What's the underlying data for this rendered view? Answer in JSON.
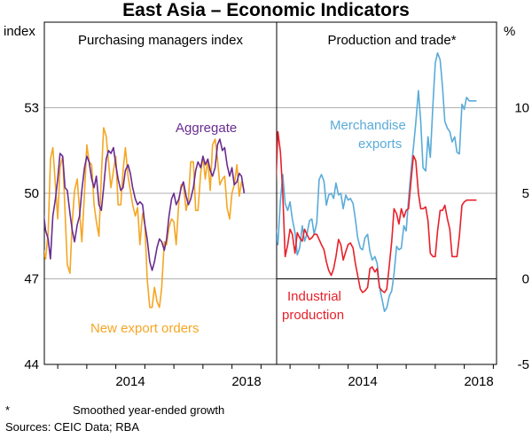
{
  "chart_data": {
    "title": "East Asia – Economic Indicators",
    "notes": {
      "asterisk": "*",
      "footnote": "Smoothed year-ended growth",
      "sources": "Sources: CEIC Data; RBA"
    },
    "x_tick_labels": [
      "2014",
      "2018",
      "2014",
      "2018"
    ],
    "panels": [
      {
        "type": "line",
        "title": "Purchasing managers index",
        "ylabel": "index",
        "ylim": [
          44,
          56
        ],
        "yticks": [
          44,
          47,
          50,
          53
        ],
        "xlim": [
          2011.0,
          2019.0
        ],
        "series": [
          {
            "name": "Aggregate",
            "label": "Aggregate",
            "color": "#6a2c91",
            "x": [
              2011.0,
              2011.08,
              2011.17,
              2011.25,
              2011.33,
              2011.42,
              2011.5,
              2011.58,
              2011.67,
              2011.75,
              2011.83,
              2011.92,
              2012.0,
              2012.08,
              2012.17,
              2012.25,
              2012.33,
              2012.42,
              2012.5,
              2012.58,
              2012.67,
              2012.75,
              2012.83,
              2012.92,
              2013.0,
              2013.08,
              2013.17,
              2013.25,
              2013.33,
              2013.42,
              2013.5,
              2013.58,
              2013.67,
              2013.75,
              2013.83,
              2013.92,
              2014.0,
              2014.08,
              2014.17,
              2014.25,
              2014.33,
              2014.42,
              2014.5,
              2014.58,
              2014.67,
              2014.75,
              2014.83,
              2014.92,
              2015.0,
              2015.08,
              2015.17,
              2015.25,
              2015.33,
              2015.42,
              2015.5,
              2015.58,
              2015.67,
              2015.75,
              2015.83,
              2015.92,
              2016.0,
              2016.08,
              2016.17,
              2016.25,
              2016.33,
              2016.42,
              2016.5,
              2016.58,
              2016.67,
              2016.75,
              2016.83,
              2016.92,
              2017.0,
              2017.08,
              2017.17,
              2017.25,
              2017.33,
              2017.42,
              2017.5,
              2017.58,
              2017.67,
              2017.75,
              2017.83,
              2017.92,
              2018.0,
              2018.08,
              2018.17,
              2018.25,
              2018.33,
              2018.42
            ],
            "y": [
              51.9,
              51.2,
              50.6,
              51.7,
              50.1,
              49.8,
              49.4,
              48.7,
              48.4,
              47.7,
              49.2,
              49.8,
              50.5,
              51.4,
              51.3,
              50.2,
              50.1,
              49.3,
              48.7,
              48.3,
              48.9,
              49.2,
              50.1,
              50.9,
              51.3,
              51.1,
              50.5,
              50.2,
              50.6,
              49.6,
              49.4,
              50.2,
              51.2,
              51.5,
              51.4,
              51.6,
              51.0,
              50.5,
              50.1,
              50.2,
              50.8,
              51.0,
              50.7,
              50.2,
              49.8,
              49.6,
              49.7,
              49.6,
              48.9,
              48.4,
              47.6,
              47.3,
              47.6,
              48.1,
              48.4,
              48.3,
              48.0,
              48.4,
              49.2,
              49.8,
              50.0,
              49.6,
              49.8,
              50.2,
              50.4,
              49.9,
              49.6,
              49.8,
              50.2,
              50.8,
              51.1,
              50.9,
              51.3,
              51.0,
              51.2,
              50.8,
              50.6,
              50.9,
              51.7,
              51.9,
              51.5,
              51.6,
              51.0,
              50.6,
              50.9,
              50.3,
              50.4,
              50.7,
              50.6,
              50.0
            ]
          },
          {
            "name": "New export orders",
            "label": "New export orders",
            "color": "#f5a623",
            "x": [
              2011.0,
              2011.08,
              2011.17,
              2011.25,
              2011.33,
              2011.42,
              2011.5,
              2011.58,
              2011.67,
              2011.75,
              2011.83,
              2011.92,
              2012.0,
              2012.08,
              2012.17,
              2012.25,
              2012.33,
              2012.42,
              2012.5,
              2012.58,
              2012.67,
              2012.75,
              2012.83,
              2012.92,
              2013.0,
              2013.08,
              2013.17,
              2013.25,
              2013.33,
              2013.42,
              2013.5,
              2013.58,
              2013.67,
              2013.75,
              2013.83,
              2013.92,
              2014.0,
              2014.08,
              2014.17,
              2014.25,
              2014.33,
              2014.42,
              2014.5,
              2014.58,
              2014.67,
              2014.75,
              2014.83,
              2014.92,
              2015.0,
              2015.08,
              2015.17,
              2015.25,
              2015.33,
              2015.42,
              2015.5,
              2015.58,
              2015.67,
              2015.75,
              2015.83,
              2015.92,
              2016.0,
              2016.08,
              2016.17,
              2016.25,
              2016.33,
              2016.42,
              2016.5,
              2016.58,
              2016.67,
              2016.75,
              2016.83,
              2016.92,
              2017.0,
              2017.08,
              2017.17,
              2017.25,
              2017.33,
              2017.42,
              2017.5,
              2017.58,
              2017.67,
              2017.75,
              2017.83,
              2017.92,
              2018.0,
              2018.08,
              2018.17,
              2018.25,
              2018.33,
              2018.42
            ],
            "y": [
              48.3,
              50.6,
              51.8,
              50.4,
              49.3,
              47.9,
              48.1,
              47.7,
              48.6,
              51.2,
              51.6,
              50.3,
              49.1,
              50.9,
              51.3,
              49.4,
              47.5,
              47.2,
              49.0,
              50.1,
              50.5,
              49.4,
              48.3,
              50.0,
              51.7,
              51.1,
              51.0,
              49.6,
              49.0,
              48.5,
              50.6,
              52.3,
              52.0,
              51.1,
              50.2,
              50.8,
              51.3,
              49.6,
              49.6,
              50.8,
              51.6,
              50.6,
              50.1,
              49.6,
              49.2,
              49.5,
              48.2,
              49.3,
              48.9,
              47.0,
              46.0,
              46.0,
              46.7,
              46.2,
              46.0,
              46.7,
              48.3,
              48.2,
              48.8,
              49.1,
              49.0,
              48.2,
              49.7,
              50.3,
              50.3,
              49.4,
              49.8,
              51.1,
              51.1,
              49.4,
              49.4,
              50.7,
              51.3,
              50.5,
              51.2,
              50.1,
              51.7,
              51.9,
              51.2,
              50.3,
              50.5,
              50.6,
              49.5,
              49.1,
              50.0,
              50.3,
              51.0,
              49.9,
              50.4,
              50.1
            ]
          }
        ]
      },
      {
        "type": "line",
        "title": "Production and trade*",
        "ylabel": "%",
        "ylim": [
          -5,
          15
        ],
        "yticks": [
          -5,
          0,
          5,
          10
        ],
        "xlim": [
          2011.0,
          2019.0
        ],
        "series": [
          {
            "name": "Merchandise exports",
            "label_line1": "Merchandise",
            "label_line2": "exports",
            "color": "#5aabd9",
            "x": [
              2011.0,
              2011.08,
              2011.17,
              2011.25,
              2011.33,
              2011.42,
              2011.5,
              2011.58,
              2011.67,
              2011.75,
              2011.83,
              2011.92,
              2012.0,
              2012.08,
              2012.17,
              2012.25,
              2012.33,
              2012.42,
              2012.5,
              2012.58,
              2012.67,
              2012.75,
              2012.83,
              2012.92,
              2013.0,
              2013.08,
              2013.17,
              2013.25,
              2013.33,
              2013.42,
              2013.5,
              2013.58,
              2013.67,
              2013.75,
              2013.83,
              2013.92,
              2014.0,
              2014.08,
              2014.17,
              2014.25,
              2014.33,
              2014.42,
              2014.5,
              2014.58,
              2014.67,
              2014.75,
              2014.83,
              2014.92,
              2015.0,
              2015.08,
              2015.17,
              2015.25,
              2015.33,
              2015.42,
              2015.5,
              2015.58,
              2015.67,
              2015.75,
              2015.83,
              2015.92,
              2016.0,
              2016.08,
              2016.17,
              2016.25,
              2016.33,
              2016.42,
              2016.5,
              2016.58,
              2016.67,
              2016.75,
              2016.83,
              2016.92,
              2017.0,
              2017.08,
              2017.17,
              2017.25,
              2017.33,
              2017.42,
              2017.5,
              2017.58,
              2017.67,
              2017.75,
              2017.83,
              2017.92,
              2018.0,
              2018.08,
              2018.17,
              2018.25,
              2018.33,
              2018.42
            ],
            "y": [
              1.5,
              2.0,
              1.3,
              2.3,
              1.8,
              2.6,
              3.2,
              2.0,
              4.6,
              6.1,
              4.4,
              4.0,
              4.5,
              3.5,
              2.7,
              1.4,
              1.8,
              3.1,
              2.2,
              2.6,
              3.4,
              3.5,
              2.6,
              3.3,
              5.8,
              6.1,
              5.7,
              4.3,
              4.9,
              5.0,
              4.7,
              5.6,
              4.9,
              5.0,
              4.1,
              4.9,
              4.6,
              4.7,
              4.4,
              3.5,
              2.4,
              1.8,
              1.7,
              2.4,
              2.6,
              1.6,
              1.1,
              1.3,
              0.9,
              -0.5,
              -1.2,
              -1.9,
              -1.7,
              -1.0,
              -0.7,
              0.3,
              1.9,
              1.7,
              1.8,
              3.1,
              2.8,
              4.6,
              6.4,
              7.7,
              9.1,
              11.0,
              9.2,
              6.5,
              6.3,
              8.3,
              7.1,
              10.2,
              12.6,
              13.2,
              12.8,
              11.2,
              9.2,
              8.8,
              8.6,
              8.0,
              8.3,
              7.4,
              7.3,
              10.2,
              9.9,
              10.6,
              10.4,
              10.4,
              10.4,
              10.4
            ]
          },
          {
            "name": "Industrial production",
            "label_line1": "Industrial",
            "label_line2": "production",
            "color": "#e8202a",
            "x": [
              2011.0,
              2011.08,
              2011.17,
              2011.25,
              2011.33,
              2011.42,
              2011.5,
              2011.58,
              2011.67,
              2011.75,
              2011.83,
              2011.92,
              2012.0,
              2012.08,
              2012.17,
              2012.25,
              2012.33,
              2012.42,
              2012.5,
              2012.58,
              2012.67,
              2012.75,
              2012.83,
              2012.92,
              2013.0,
              2013.08,
              2013.17,
              2013.25,
              2013.33,
              2013.42,
              2013.5,
              2013.58,
              2013.67,
              2013.75,
              2013.83,
              2013.92,
              2014.0,
              2014.08,
              2014.17,
              2014.25,
              2014.33,
              2014.42,
              2014.5,
              2014.58,
              2014.67,
              2014.75,
              2014.83,
              2014.92,
              2015.0,
              2015.08,
              2015.17,
              2015.25,
              2015.33,
              2015.42,
              2015.5,
              2015.58,
              2015.67,
              2015.75,
              2015.83,
              2015.92,
              2016.0,
              2016.08,
              2016.17,
              2016.25,
              2016.33,
              2016.42,
              2016.5,
              2016.58,
              2016.67,
              2016.75,
              2016.83,
              2016.92,
              2017.0,
              2017.08,
              2017.17,
              2017.25,
              2017.33,
              2017.42,
              2017.5,
              2017.58,
              2017.67,
              2017.75,
              2017.83,
              2017.92,
              2018.0,
              2018.08,
              2018.17,
              2018.25,
              2018.33,
              2018.42
            ],
            "y": [
              -2.6,
              -0.6,
              1.2,
              2.8,
              2.0,
              2.2,
              5.0,
              8.6,
              7.4,
              5.0,
              1.3,
              2.0,
              2.9,
              2.6,
              1.5,
              2.7,
              2.4,
              2.2,
              2.9,
              2.6,
              2.3,
              2.4,
              2.6,
              2.6,
              2.3,
              2.0,
              1.7,
              1.0,
              0.5,
              0.2,
              0.6,
              1.3,
              2.3,
              2.0,
              1.1,
              1.6,
              2.0,
              2.1,
              1.8,
              0.9,
              0.2,
              -0.6,
              -0.8,
              -0.7,
              -0.5,
              0.6,
              0.7,
              0.4,
              0.6,
              -0.5,
              -0.7,
              -0.8,
              -0.6,
              0.8,
              2.2,
              4.1,
              3.8,
              3.2,
              4.1,
              3.6,
              4.0,
              4.1,
              5.8,
              7.2,
              6.9,
              5.0,
              4.1,
              4.1,
              4.2,
              3.4,
              1.5,
              1.3,
              1.3,
              2.8,
              4.0,
              4.0,
              4.3,
              3.5,
              2.9,
              1.3,
              1.3,
              1.3,
              2.5,
              4.3,
              4.5,
              4.6,
              4.6,
              4.6,
              4.6,
              4.6
            ]
          }
        ]
      }
    ]
  }
}
